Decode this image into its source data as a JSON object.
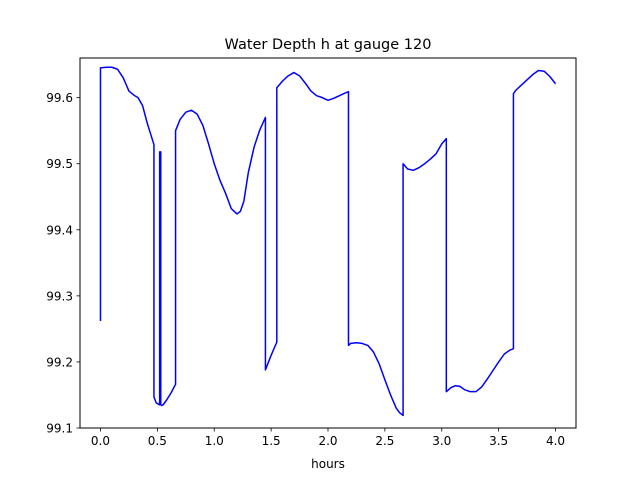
{
  "chart_data": {
    "type": "line",
    "title": "Water Depth h at gauge 120",
    "xlabel": "hours",
    "ylabel": "",
    "xlim": [
      -0.18,
      4.18
    ],
    "ylim": [
      99.1,
      99.66
    ],
    "xticks": [
      0.0,
      0.5,
      1.0,
      1.5,
      2.0,
      2.5,
      3.0,
      3.5,
      4.0
    ],
    "xtick_labels": [
      "0.0",
      "0.5",
      "1.0",
      "1.5",
      "2.0",
      "2.5",
      "3.0",
      "3.5",
      "4.0"
    ],
    "yticks": [
      99.1,
      99.2,
      99.3,
      99.4,
      99.5,
      99.6
    ],
    "ytick_labels": [
      "99.1",
      "99.2",
      "99.3",
      "99.4",
      "99.5",
      "99.6"
    ],
    "grid": false,
    "series": [
      {
        "name": "",
        "color": "#0000ff",
        "x": [
          0.0,
          0.0,
          0.05,
          0.1,
          0.15,
          0.2,
          0.25,
          0.3,
          0.33,
          0.37,
          0.41,
          0.45,
          0.47,
          0.47,
          0.49,
          0.51,
          0.52,
          0.52,
          0.53,
          0.53,
          0.54,
          0.55,
          0.58,
          0.62,
          0.65,
          0.66,
          0.66,
          0.7,
          0.75,
          0.8,
          0.85,
          0.9,
          0.95,
          1.0,
          1.05,
          1.1,
          1.15,
          1.2,
          1.23,
          1.26,
          1.3,
          1.35,
          1.4,
          1.45,
          1.45,
          1.5,
          1.55,
          1.55,
          1.6,
          1.65,
          1.7,
          1.75,
          1.8,
          1.85,
          1.9,
          1.95,
          2.0,
          2.05,
          2.1,
          2.15,
          2.18,
          2.18,
          2.2,
          2.25,
          2.3,
          2.35,
          2.4,
          2.45,
          2.5,
          2.55,
          2.6,
          2.63,
          2.66,
          2.66,
          2.7,
          2.75,
          2.8,
          2.85,
          2.9,
          2.95,
          3.0,
          3.04,
          3.04,
          3.08,
          3.12,
          3.16,
          3.2,
          3.25,
          3.3,
          3.35,
          3.4,
          3.45,
          3.5,
          3.55,
          3.6,
          3.63,
          3.63,
          3.65,
          3.7,
          3.75,
          3.8,
          3.85,
          3.9,
          3.95,
          4.0
        ],
        "y": [
          99.262,
          99.645,
          99.646,
          99.646,
          99.643,
          99.63,
          99.61,
          99.603,
          99.6,
          99.588,
          99.562,
          99.54,
          99.529,
          99.147,
          99.138,
          99.136,
          99.135,
          99.518,
          99.518,
          99.135,
          99.134,
          99.135,
          99.142,
          99.153,
          99.163,
          99.166,
          99.55,
          99.567,
          99.578,
          99.581,
          99.575,
          99.558,
          99.53,
          99.5,
          99.475,
          99.455,
          99.432,
          99.424,
          99.428,
          99.443,
          99.487,
          99.525,
          99.551,
          99.57,
          99.188,
          99.21,
          99.23,
          99.615,
          99.625,
          99.633,
          99.638,
          99.633,
          99.622,
          99.61,
          99.603,
          99.6,
          99.596,
          99.599,
          99.603,
          99.607,
          99.609,
          99.225,
          99.228,
          99.229,
          99.228,
          99.225,
          99.215,
          99.197,
          99.173,
          99.15,
          99.13,
          99.123,
          99.119,
          99.5,
          99.492,
          99.49,
          99.494,
          99.5,
          99.507,
          99.515,
          99.53,
          99.538,
          99.155,
          99.161,
          99.164,
          99.163,
          99.158,
          99.155,
          99.155,
          99.162,
          99.174,
          99.187,
          99.2,
          99.212,
          99.218,
          99.22,
          99.606,
          99.611,
          99.619,
          99.627,
          99.635,
          99.641,
          99.64,
          99.632,
          99.621
        ]
      }
    ]
  }
}
